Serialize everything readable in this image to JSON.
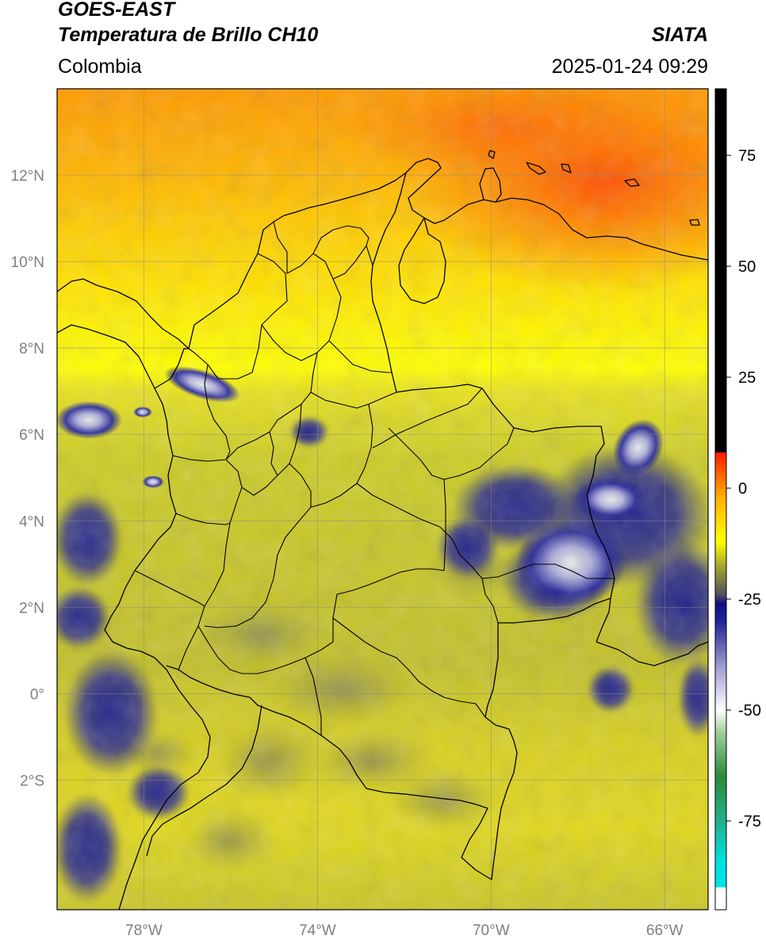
{
  "header": {
    "satellite": "GOES-EAST",
    "product": "Temperatura de Brillo CH10",
    "region": "Colombia",
    "agency": "SIATA",
    "datetime": "2025-01-24 09:29"
  },
  "map": {
    "lon_range": [
      -80,
      -65
    ],
    "lat_range": [
      -5,
      14
    ],
    "lon_ticks": [
      {
        "value": -78,
        "label": "78°W"
      },
      {
        "value": -74,
        "label": "74°W"
      },
      {
        "value": -70,
        "label": "70°W"
      },
      {
        "value": -66,
        "label": "66°W"
      }
    ],
    "lat_ticks": [
      {
        "value": 12,
        "label": "12°N"
      },
      {
        "value": 10,
        "label": "10°N"
      },
      {
        "value": 8,
        "label": "8°N"
      },
      {
        "value": 6,
        "label": "6°N"
      },
      {
        "value": 4,
        "label": "4°N"
      },
      {
        "value": 2,
        "label": "2°N"
      },
      {
        "value": 0,
        "label": "0°"
      },
      {
        "value": -2,
        "label": "2°S"
      }
    ],
    "gridlines": true
  },
  "colorbar": {
    "range": [
      -95,
      90
    ],
    "ticks": [
      {
        "value": 75,
        "label": "75"
      },
      {
        "value": 50,
        "label": "50"
      },
      {
        "value": 25,
        "label": "25"
      },
      {
        "value": 0,
        "label": "0"
      },
      {
        "value": -25,
        "label": "-25"
      },
      {
        "value": -50,
        "label": "-50"
      },
      {
        "value": -75,
        "label": "-75"
      }
    ],
    "stops": [
      {
        "value": -95,
        "color": "#ffffff"
      },
      {
        "value": -90,
        "color": "#ffffff"
      },
      {
        "value": -89.9,
        "color": "#00e5e5"
      },
      {
        "value": -84,
        "color": "#00e0e0"
      },
      {
        "value": -75,
        "color": "#20b08a"
      },
      {
        "value": -65,
        "color": "#2a8a3a"
      },
      {
        "value": -55,
        "color": "#9fd09a"
      },
      {
        "value": -50,
        "color": "#ffffff"
      },
      {
        "value": -40,
        "color": "#9a9ad0"
      },
      {
        "value": -30,
        "color": "#22229a"
      },
      {
        "value": -26,
        "color": "#101080"
      },
      {
        "value": -24,
        "color": "#505060"
      },
      {
        "value": -18,
        "color": "#a0a030"
      },
      {
        "value": -12,
        "color": "#ffff00"
      },
      {
        "value": -2,
        "color": "#ffb000"
      },
      {
        "value": 8,
        "color": "#ff1a00"
      },
      {
        "value": 8.1,
        "color": "#000000"
      },
      {
        "value": 90,
        "color": "#000000"
      }
    ]
  }
}
